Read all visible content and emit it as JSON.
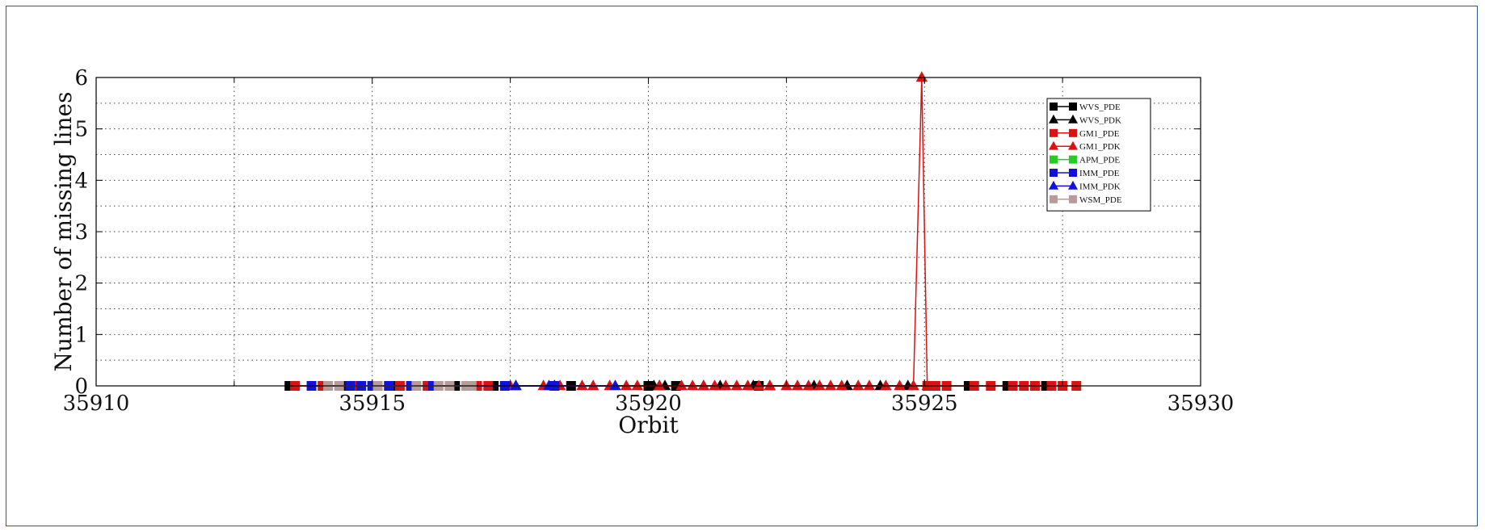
{
  "chart_data": {
    "type": "line",
    "title": "",
    "xlabel": "Orbit",
    "ylabel": "Number of missing lines",
    "xlim": [
      35910,
      35930
    ],
    "ylim": [
      0,
      6
    ],
    "xticks": [
      "35910",
      "35915",
      "35920",
      "35925",
      "35930"
    ],
    "yticks": [
      "0",
      "1",
      "2",
      "3",
      "4",
      "5",
      "6"
    ],
    "grid": true,
    "legend_position": "top-right",
    "series": [
      {
        "name": "WVS_PDE",
        "color": "#000000",
        "marker": "square",
        "x": [
          35913.5,
          35914.5,
          35915.4,
          35916.5,
          35917.2,
          35918.6,
          35920.0,
          35920.5,
          35922.0,
          35925.8,
          35926.5,
          35927.2
        ],
        "y": [
          0,
          0,
          0,
          0,
          0,
          0,
          0,
          0,
          0,
          0,
          0,
          0
        ]
      },
      {
        "name": "WVS_PDK",
        "color": "#000000",
        "marker": "triangle",
        "x": [
          35917.6,
          35918.3,
          35920.1,
          35920.2,
          35920.3,
          35921.0,
          35921.3,
          35921.9,
          35922.2,
          35923.0,
          35923.6,
          35924.2,
          35924.7
        ],
        "y": [
          0,
          0,
          0,
          0,
          0,
          0,
          0,
          0,
          0,
          0,
          0,
          0,
          0
        ]
      },
      {
        "name": "GM1_PDE",
        "color": "#dd1111",
        "marker": "square",
        "x": [
          35913.6,
          35914.1,
          35914.7,
          35915.5,
          35916.0,
          35916.9,
          35917.1,
          35925.05,
          35925.2,
          35925.4,
          35925.9,
          35926.2,
          35926.6,
          35926.8,
          35927.0,
          35927.3,
          35927.5,
          35927.75
        ],
        "y": [
          0,
          0,
          0,
          0,
          0,
          0,
          0,
          0,
          0,
          0,
          0,
          0,
          0,
          0,
          0,
          0,
          0,
          0
        ]
      },
      {
        "name": "GM1_PDK",
        "color": "#dd1111",
        "marker": "triangle",
        "x": [
          35917.5,
          35918.1,
          35918.4,
          35918.8,
          35919.0,
          35919.3,
          35919.6,
          35919.8,
          35920.2,
          35920.6,
          35920.8,
          35921.0,
          35921.2,
          35921.4,
          35921.6,
          35921.8,
          35922.0,
          35922.2,
          35922.5,
          35922.7,
          35922.9,
          35923.1,
          35923.3,
          35923.5,
          35923.8,
          35924.0,
          35924.3,
          35924.55,
          35924.8,
          35924.95,
          35925.05
        ],
        "y": [
          0,
          0,
          0,
          0,
          0,
          0,
          0,
          0,
          0,
          0,
          0,
          0,
          0,
          0,
          0,
          0,
          0,
          0,
          0,
          0,
          0,
          0,
          0,
          0,
          0,
          0,
          0,
          0,
          0,
          6,
          0
        ]
      },
      {
        "name": "APM_PDE",
        "color": "#22cc22",
        "marker": "square",
        "x": [
          35915.0
        ],
        "y": [
          0
        ]
      },
      {
        "name": "IMM_PDE",
        "color": "#1111dd",
        "marker": "square",
        "x": [
          35913.9,
          35914.6,
          35914.8,
          35915.0,
          35915.3,
          35915.7,
          35916.1,
          35917.4,
          35918.3
        ],
        "y": [
          0,
          0,
          0,
          0,
          0,
          0,
          0,
          0,
          0
        ]
      },
      {
        "name": "IMM_PDK",
        "color": "#1111dd",
        "marker": "triangle",
        "x": [
          35917.6,
          35918.2,
          35919.4
        ],
        "y": [
          0,
          0,
          0
        ]
      },
      {
        "name": "WSM_PDE",
        "color": "#b89a98",
        "marker": "square",
        "x": [
          35914.2,
          35914.4,
          35915.1,
          35915.8,
          35916.2,
          35916.4,
          35916.7,
          35916.8
        ],
        "y": [
          0,
          0,
          0,
          0,
          0,
          0,
          0,
          0
        ]
      }
    ]
  }
}
